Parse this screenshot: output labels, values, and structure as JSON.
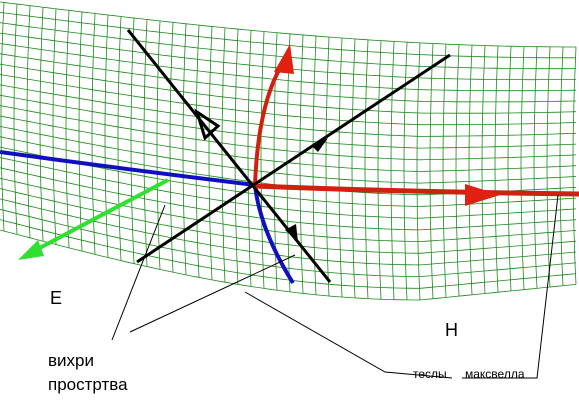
{
  "labels": {
    "e": "E",
    "h": "H",
    "vortex_line1": "вихри",
    "vortex_line2": "простртва",
    "tesla": "теслы",
    "maxwell": "максвелла"
  }
}
